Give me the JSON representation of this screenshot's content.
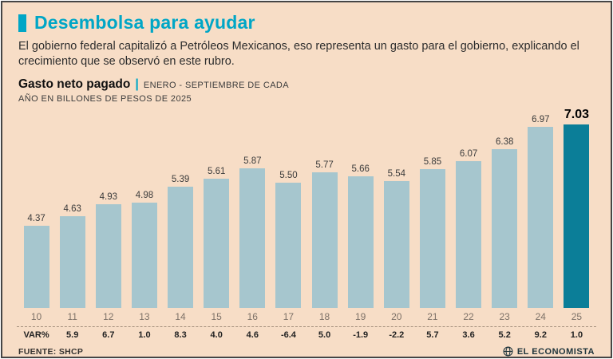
{
  "header": {
    "title": "Desembolsa para ayudar",
    "description": "El gobierno federal capitalizó a Petróleos Mexicanos, eso representa un gasto para el gobierno, explicando el crecimiento que se observó en este rubro."
  },
  "chart": {
    "heading_bold": "Gasto neto pagado",
    "heading_divider": "|",
    "heading_rest": "ENERO - SEPTIEMBRE DE CADA",
    "heading_line2": "AÑO EN BILLONES DE PESOS DE 2025"
  },
  "chart_data": {
    "type": "bar",
    "title": "Gasto neto pagado | enero - septiembre de cada año en billones de pesos de 2025",
    "categories": [
      "10",
      "11",
      "12",
      "13",
      "14",
      "15",
      "16",
      "17",
      "18",
      "19",
      "20",
      "21",
      "22",
      "23",
      "24",
      "25"
    ],
    "values": [
      4.37,
      4.63,
      4.93,
      4.98,
      5.39,
      5.61,
      5.87,
      5.5,
      5.77,
      5.66,
      5.54,
      5.85,
      6.07,
      6.38,
      6.97,
      7.03
    ],
    "var_label": "VAR%",
    "var_pct": [
      null,
      5.9,
      6.7,
      1.0,
      8.3,
      4.0,
      4.6,
      -6.4,
      5.0,
      -1.9,
      -2.2,
      5.7,
      3.6,
      5.2,
      9.2,
      1.0
    ],
    "bar_color": "#a6c6ce",
    "highlight_color": "#0b7e98",
    "highlight_index": 15,
    "ylim": [
      2.2,
      7.03
    ],
    "grid": "off",
    "legend": "none"
  },
  "footer": {
    "source": "FUENTE: SHCP",
    "brand": "EL ECONOMISTA"
  },
  "colors": {
    "accent": "#00a6c6",
    "background": "#f7ddc6",
    "border": "#454545"
  }
}
